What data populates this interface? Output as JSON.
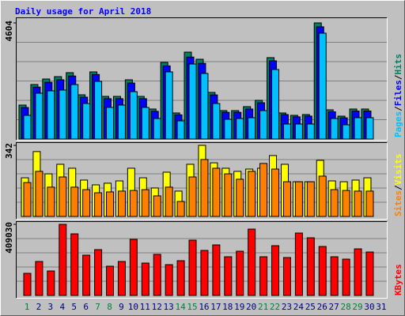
{
  "chart_data": [
    {
      "type": "bar",
      "title": "Daily usage for April 2018",
      "categories": [
        "1",
        "2",
        "3",
        "4",
        "5",
        "6",
        "7",
        "8",
        "9",
        "10",
        "11",
        "12",
        "13",
        "14",
        "15",
        "16",
        "17",
        "18",
        "19",
        "20",
        "21",
        "22",
        "23",
        "24",
        "25",
        "26",
        "27",
        "28",
        "29",
        "30",
        "31"
      ],
      "category_colors": [
        "#008040",
        "#000080",
        "#000080",
        "#000080",
        "#000080",
        "#000080",
        "#008040",
        "#008040",
        "#000080",
        "#000080",
        "#000080",
        "#000080",
        "#000080",
        "#008040",
        "#008040",
        "#000080",
        "#000080",
        "#000080",
        "#000080",
        "#000080",
        "#008040",
        "#008040",
        "#000080",
        "#000080",
        "#000080",
        "#000080",
        "#000080",
        "#008040",
        "#008040",
        "#000080",
        "#000080"
      ],
      "legend_separator": "/",
      "series": [
        {
          "name": "Pages",
          "color": "#00c0ff",
          "values": [
            940,
            1817,
            1910,
            1942,
            2161,
            1409,
            2286,
            1253,
            1347,
            1879,
            1253,
            814,
            2662,
            720,
            2975,
            2600,
            1409,
            783,
            814,
            846,
            1127,
            2756,
            595,
            595,
            595,
            4197,
            814,
            564,
            846,
            846,
            null
          ]
        },
        {
          "name": "Files",
          "color": "#0000ff",
          "values": [
            1250,
            2060,
            2250,
            2350,
            2500,
            1660,
            2560,
            1600,
            1600,
            2220,
            1600,
            1100,
            2900,
            960,
            3250,
            3000,
            1750,
            1060,
            1060,
            1190,
            1440,
            3100,
            970,
            880,
            910,
            4450,
            1080,
            840,
            1110,
            1110,
            null
          ]
        },
        {
          "name": "Hits",
          "color": "#008060",
          "values": [
            1347,
            2161,
            2380,
            2474,
            2631,
            1754,
            2662,
            1691,
            1691,
            2349,
            1691,
            1190,
            3038,
            1034,
            3445,
            3163,
            1848,
            1127,
            1127,
            1284,
            1535,
            3226,
            1034,
            940,
            971,
            4604,
            1159,
            908,
            1190,
            1190,
            null
          ]
        }
      ],
      "ylim": [
        0,
        4604
      ],
      "yticks": [
        4604
      ],
      "grid": true
    },
    {
      "type": "bar",
      "categories": [
        "1",
        "2",
        "3",
        "4",
        "5",
        "6",
        "7",
        "8",
        "9",
        "10",
        "11",
        "12",
        "13",
        "14",
        "15",
        "16",
        "17",
        "18",
        "19",
        "20",
        "21",
        "22",
        "23",
        "24",
        "25",
        "26",
        "27",
        "28",
        "29",
        "30",
        "31"
      ],
      "legend_separator": "/",
      "series": [
        {
          "name": "Sites",
          "color": "#ff8000",
          "values": [
            163,
            217,
            141,
            190,
            141,
            129,
            114,
            118,
            122,
            125,
            129,
            99,
            141,
            72,
            190,
            274,
            232,
            205,
            179,
            217,
            255,
            228,
            167,
            167,
            167,
            194,
            129,
            125,
            122,
            122,
            null
          ]
        },
        {
          "name": "Visits",
          "color": "#ffff00",
          "values": [
            186,
            312,
            205,
            251,
            232,
            175,
            152,
            160,
            171,
            232,
            186,
            137,
            213,
            122,
            251,
            342,
            258,
            232,
            217,
            228,
            232,
            293,
            251,
            167,
            167,
            270,
            171,
            167,
            175,
            186,
            null
          ]
        }
      ],
      "ylim": [
        0,
        342
      ],
      "yticks": [
        342
      ],
      "grid": true
    },
    {
      "type": "bar",
      "categories": [
        "1",
        "2",
        "3",
        "4",
        "5",
        "6",
        "7",
        "8",
        "9",
        "10",
        "11",
        "12",
        "13",
        "14",
        "15",
        "16",
        "17",
        "18",
        "19",
        "20",
        "21",
        "22",
        "23",
        "24",
        "25",
        "26",
        "27",
        "28",
        "29",
        "30",
        "31"
      ],
      "series": [
        {
          "name": "KBytes",
          "color": "#ff0000",
          "values": [
            127254,
            195425,
            140888,
            409030,
            354493,
            231784,
            263597,
            168157,
            195425,
            322680,
            186336,
            236329,
            177246,
            199970,
            318134,
            259052,
            290865,
            222695,
            254507,
            381761,
            222695,
            286320,
            218150,
            359037,
            331770,
            281775,
            222695,
            209058,
            268142,
            249962,
            null
          ]
        }
      ],
      "ylim": [
        0,
        409030
      ],
      "yticks": [
        409030
      ],
      "grid": true
    }
  ]
}
